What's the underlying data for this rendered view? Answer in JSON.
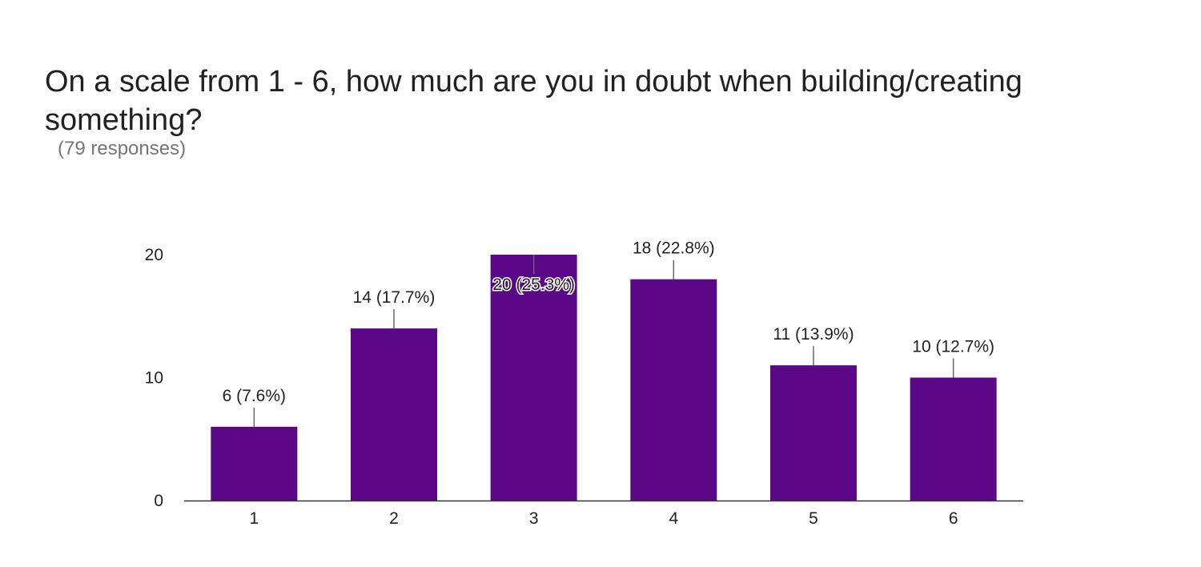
{
  "title": "On a scale from 1 - 6, how much are you in doubt when building/creating something?",
  "subtitle": "(79 responses)",
  "colors": {
    "bar": "#5a0788",
    "axis": "#333333",
    "leader": "#666666"
  },
  "chart_data": {
    "type": "bar",
    "title": "On a scale from 1 - 6, how much are you in doubt when building/creating something?",
    "subtitle": "(79 responses)",
    "categories": [
      "1",
      "2",
      "3",
      "4",
      "5",
      "6"
    ],
    "values": [
      6,
      14,
      20,
      18,
      11,
      10
    ],
    "data_labels": [
      "6 (7.6%)",
      "14 (17.7%)",
      "20 (25.3%)",
      "18 (22.8%)",
      "11 (13.9%)",
      "10 (12.7%)"
    ],
    "ylim": [
      0,
      20
    ],
    "yticks": [
      0,
      10,
      20
    ],
    "grid": false,
    "legend": "none",
    "xlabel": "",
    "ylabel": ""
  }
}
